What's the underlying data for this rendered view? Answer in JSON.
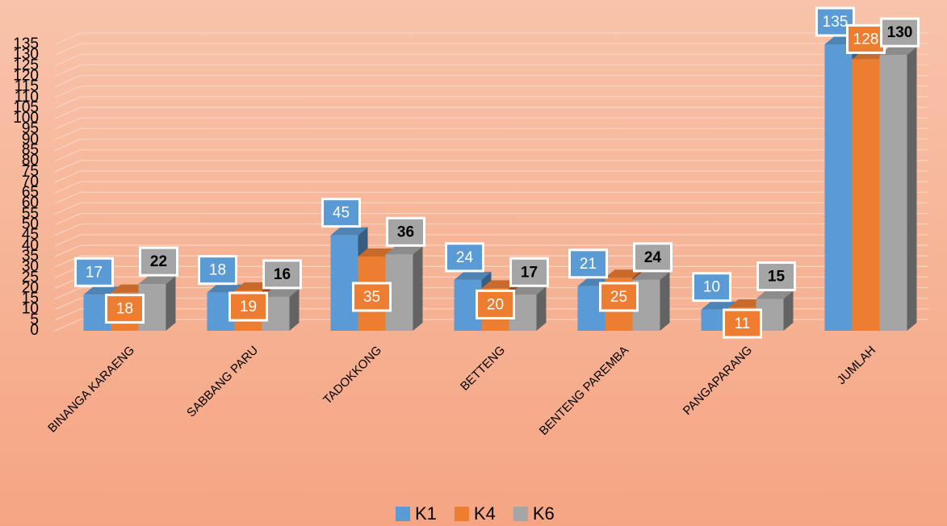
{
  "chart_data": {
    "type": "bar3d",
    "categories": [
      "BINANGA KARAENG",
      "SABBANG PARU",
      "TADOKKONG",
      "BETTENG",
      "BENTENG PAREMBA",
      "PANGAPARANG",
      "JUMLAH"
    ],
    "series": [
      {
        "name": "K1",
        "color": "#5b9bd5",
        "values": [
          17,
          18,
          45,
          24,
          21,
          10,
          135
        ]
      },
      {
        "name": "K4",
        "color": "#ed7d31",
        "values": [
          18,
          19,
          35,
          20,
          25,
          11,
          128
        ]
      },
      {
        "name": "K6",
        "color": "#a5a5a5",
        "values": [
          22,
          16,
          36,
          17,
          24,
          15,
          130
        ]
      }
    ],
    "ylim": [
      0,
      135
    ],
    "yticks": [
      0,
      5,
      10,
      15,
      20,
      25,
      30,
      35,
      40,
      45,
      50,
      55,
      60,
      65,
      70,
      75,
      80,
      85,
      90,
      95,
      100,
      105,
      110,
      115,
      120,
      125,
      130,
      135
    ],
    "grid": true,
    "legend": "bottom"
  }
}
